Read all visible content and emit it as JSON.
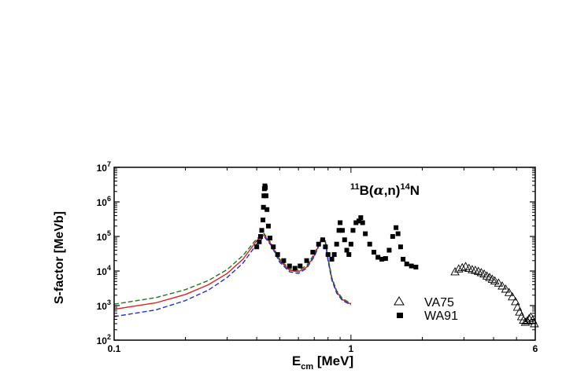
{
  "chart_data": {
    "type": "scatter",
    "title": "",
    "annotation": {
      "pre": "11",
      "b": "B(",
      "alpha": "α",
      "mid": ",n)",
      "post": "14",
      "end": "N"
    },
    "xlabel": {
      "main": "E",
      "sub": "cm",
      "rest": " [MeV]"
    },
    "ylabel": "S-factor [MeVb]",
    "xscale": "log",
    "yscale": "log",
    "xlim": [
      0.1,
      6
    ],
    "ylim": [
      100,
      10000000
    ],
    "x_ticks": [
      {
        "value": 0.1,
        "label": "0.1"
      },
      {
        "value": 1,
        "label": "1"
      },
      {
        "value": 6,
        "label": "6"
      }
    ],
    "y_ticks": [
      {
        "value": 100,
        "base": "10",
        "exp": "2"
      },
      {
        "value": 1000,
        "base": "10",
        "exp": "3"
      },
      {
        "value": 10000,
        "base": "10",
        "exp": "4"
      },
      {
        "value": 100000,
        "base": "10",
        "exp": "5"
      },
      {
        "value": 1000000,
        "base": "10",
        "exp": "6"
      },
      {
        "value": 10000000,
        "base": "10",
        "exp": "7"
      }
    ],
    "legend_position": "lower-right",
    "series": [
      {
        "name": "VA75",
        "marker": "open-triangle",
        "color": "#000000",
        "points": [
          [
            2.75,
            9500
          ],
          [
            2.85,
            11500
          ],
          [
            2.95,
            12500
          ],
          [
            3.05,
            13500
          ],
          [
            3.15,
            12000
          ],
          [
            3.25,
            11000
          ],
          [
            3.35,
            10500
          ],
          [
            3.45,
            9800
          ],
          [
            3.55,
            9000
          ],
          [
            3.65,
            8200
          ],
          [
            3.75,
            7200
          ],
          [
            3.85,
            6500
          ],
          [
            3.95,
            5800
          ],
          [
            4.05,
            5200
          ],
          [
            4.2,
            4500
          ],
          [
            4.35,
            3700
          ],
          [
            4.5,
            3000
          ],
          [
            4.65,
            2400
          ],
          [
            4.8,
            1800
          ],
          [
            4.95,
            1300
          ],
          [
            5.05,
            900
          ],
          [
            5.15,
            650
          ],
          [
            5.25,
            480
          ],
          [
            5.35,
            380
          ],
          [
            5.45,
            330
          ],
          [
            5.55,
            360
          ],
          [
            5.65,
            420
          ],
          [
            5.75,
            470
          ],
          [
            5.85,
            380
          ],
          [
            5.95,
            300
          ]
        ]
      },
      {
        "name": "WA91",
        "marker": "filled-square",
        "color": "#000000",
        "points": [
          [
            0.4,
            50000
          ],
          [
            0.41,
            70000
          ],
          [
            0.415,
            100000
          ],
          [
            0.42,
            150000
          ],
          [
            0.425,
            300000
          ],
          [
            0.427,
            700000
          ],
          [
            0.429,
            1500000
          ],
          [
            0.431,
            2400000
          ],
          [
            0.433,
            2900000
          ],
          [
            0.435,
            2600000
          ],
          [
            0.438,
            1500000
          ],
          [
            0.442,
            600000
          ],
          [
            0.448,
            200000
          ],
          [
            0.455,
            90000
          ],
          [
            0.47,
            50000
          ],
          [
            0.49,
            30000
          ],
          [
            0.52,
            20000
          ],
          [
            0.55,
            14000
          ],
          [
            0.58,
            12000
          ],
          [
            0.61,
            14000
          ],
          [
            0.65,
            20000
          ],
          [
            0.69,
            35000
          ],
          [
            0.73,
            60000
          ],
          [
            0.76,
            80000
          ],
          [
            0.78,
            50000
          ],
          [
            0.8,
            30000
          ],
          [
            0.83,
            22000
          ],
          [
            0.85,
            30000
          ],
          [
            0.87,
            60000
          ],
          [
            0.89,
            150000
          ],
          [
            0.9,
            250000
          ],
          [
            0.92,
            150000
          ],
          [
            0.94,
            80000
          ],
          [
            0.96,
            40000
          ],
          [
            0.98,
            30000
          ],
          [
            1.0,
            60000
          ],
          [
            1.02,
            150000
          ],
          [
            1.05,
            250000
          ],
          [
            1.08,
            280000
          ],
          [
            1.1,
            350000
          ],
          [
            1.12,
            250000
          ],
          [
            1.15,
            120000
          ],
          [
            1.2,
            60000
          ],
          [
            1.25,
            35000
          ],
          [
            1.3,
            25000
          ],
          [
            1.35,
            22000
          ],
          [
            1.4,
            23000
          ],
          [
            1.45,
            40000
          ],
          [
            1.5,
            100000
          ],
          [
            1.55,
            180000
          ],
          [
            1.58,
            120000
          ],
          [
            1.62,
            50000
          ],
          [
            1.66,
            22000
          ],
          [
            1.72,
            16000
          ],
          [
            1.8,
            14000
          ],
          [
            1.88,
            13000
          ]
        ]
      },
      {
        "name": "",
        "style": "solid",
        "color": "#e02020",
        "points": [
          [
            0.1,
            780
          ],
          [
            0.15,
            1200
          ],
          [
            0.2,
            2100
          ],
          [
            0.25,
            4000
          ],
          [
            0.3,
            8500
          ],
          [
            0.35,
            22000
          ],
          [
            0.4,
            75000
          ],
          [
            0.43,
            110000
          ],
          [
            0.46,
            60000
          ],
          [
            0.5,
            20000
          ],
          [
            0.55,
            10500
          ],
          [
            0.6,
            9500
          ],
          [
            0.65,
            13000
          ],
          [
            0.7,
            28000
          ],
          [
            0.75,
            85000
          ],
          [
            0.78,
            70000
          ],
          [
            0.8,
            22000
          ],
          [
            0.83,
            6000
          ],
          [
            0.87,
            2500
          ],
          [
            0.92,
            1500
          ],
          [
            1.0,
            1100
          ]
        ]
      },
      {
        "name": "",
        "style": "dashed",
        "color": "#1a7a1a",
        "points": [
          [
            0.1,
            1100
          ],
          [
            0.15,
            1700
          ],
          [
            0.2,
            2900
          ],
          [
            0.25,
            5300
          ],
          [
            0.3,
            11000
          ],
          [
            0.35,
            28000
          ],
          [
            0.4,
            85000
          ],
          [
            0.43,
            120000
          ],
          [
            0.46,
            65000
          ],
          [
            0.5,
            22000
          ],
          [
            0.55,
            11500
          ],
          [
            0.6,
            10500
          ],
          [
            0.65,
            14500
          ],
          [
            0.7,
            31000
          ],
          [
            0.75,
            90000
          ],
          [
            0.78,
            75000
          ],
          [
            0.8,
            24000
          ],
          [
            0.83,
            6500
          ],
          [
            0.87,
            2700
          ],
          [
            0.92,
            1600
          ],
          [
            1.0,
            1150
          ]
        ]
      },
      {
        "name": "",
        "style": "dashed",
        "color": "#2030e0",
        "points": [
          [
            0.1,
            480
          ],
          [
            0.15,
            750
          ],
          [
            0.2,
            1400
          ],
          [
            0.25,
            2800
          ],
          [
            0.3,
            6500
          ],
          [
            0.35,
            17000
          ],
          [
            0.4,
            60000
          ],
          [
            0.43,
            100000
          ],
          [
            0.46,
            55000
          ],
          [
            0.5,
            18000
          ],
          [
            0.55,
            9500
          ],
          [
            0.6,
            8500
          ],
          [
            0.65,
            12000
          ],
          [
            0.7,
            26000
          ],
          [
            0.75,
            80000
          ],
          [
            0.78,
            65000
          ],
          [
            0.8,
            20000
          ],
          [
            0.83,
            5500
          ],
          [
            0.87,
            2300
          ],
          [
            0.92,
            1400
          ],
          [
            1.0,
            1050
          ]
        ]
      }
    ]
  }
}
